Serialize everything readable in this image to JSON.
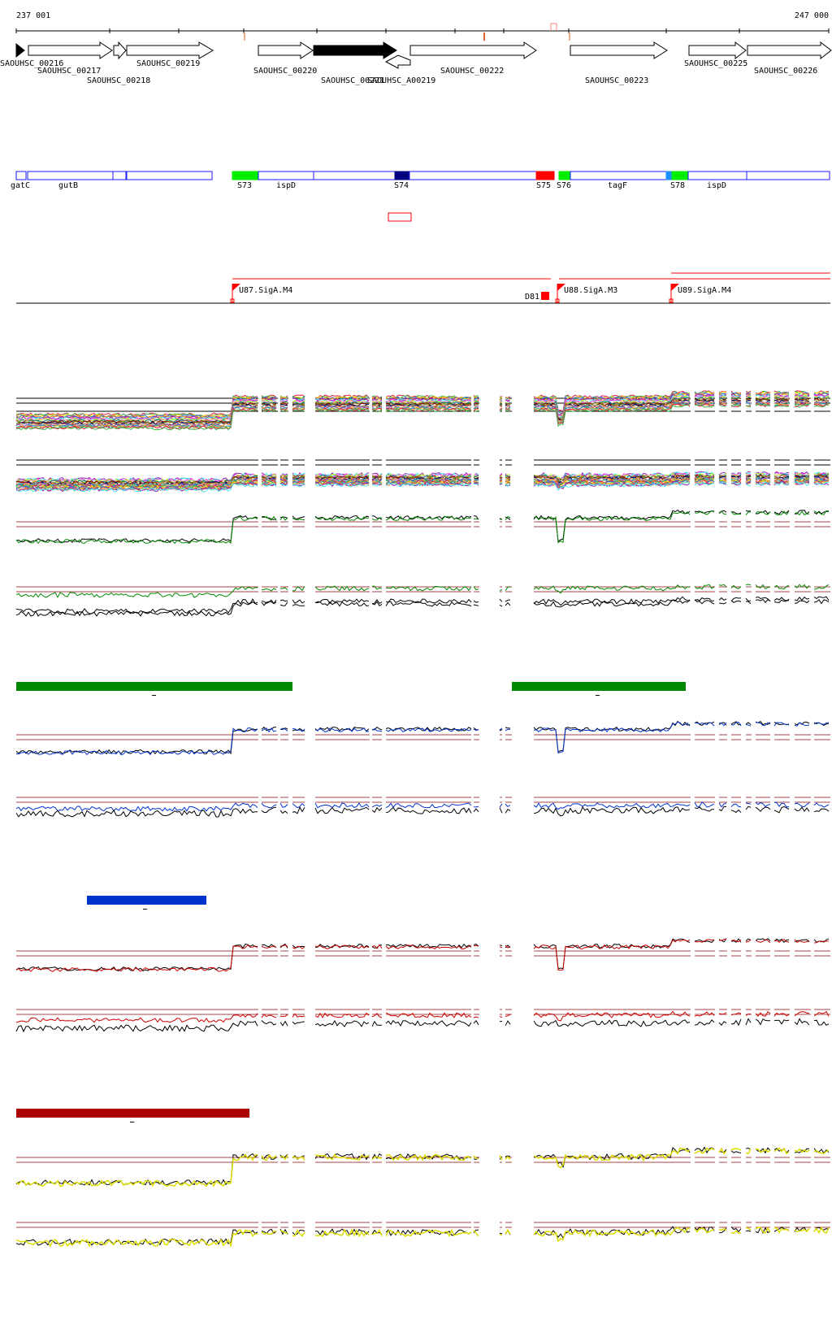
{
  "axis": {
    "start_label": "237 001",
    "end_label": "247 000"
  },
  "colors": {
    "gene_outline": "#000000",
    "operon_blue": "#1a1aff",
    "segment_green": "#00ee00",
    "segment_red": "#ff0000",
    "segment_navy": "#000080",
    "promoter_red": "#ff0000",
    "condition_green": "#008800",
    "condition_blue": "#0033cc",
    "condition_red": "#aa0000",
    "condition_yellow": "#dddd00",
    "threshold_line": "#aa4444"
  },
  "genes_top": [
    {
      "label": "SAOUHSC_00216"
    },
    {
      "label": "SAOUHSC_00217"
    },
    {
      "label": "SAOUHSC_00218"
    },
    {
      "label": "SAOUHSC_00219"
    },
    {
      "label": "SAOUHSC_00220"
    },
    {
      "label": "SAOUHSC_00221"
    },
    {
      "label": "SAOUHSC_A00219"
    },
    {
      "label": "SAOUHSC_00222"
    },
    {
      "label": "SAOUHSC_00223"
    },
    {
      "label": "SAOUHSC_00225"
    },
    {
      "label": "SAOUHSC_00226"
    }
  ],
  "operon_labels": [
    {
      "label": "gatC"
    },
    {
      "label": "gutB"
    },
    {
      "label": "S73"
    },
    {
      "label": "ispD"
    },
    {
      "label": "S74"
    },
    {
      "label": "S75"
    },
    {
      "label": "S76"
    },
    {
      "label": "tagF"
    },
    {
      "label": "S78"
    },
    {
      "label": "ispD"
    }
  ],
  "promoters": [
    {
      "label": "U87.SigA.M4"
    },
    {
      "label": "D81"
    },
    {
      "label": "U88.SigA.M3"
    },
    {
      "label": "U89.SigA.M4"
    }
  ]
}
